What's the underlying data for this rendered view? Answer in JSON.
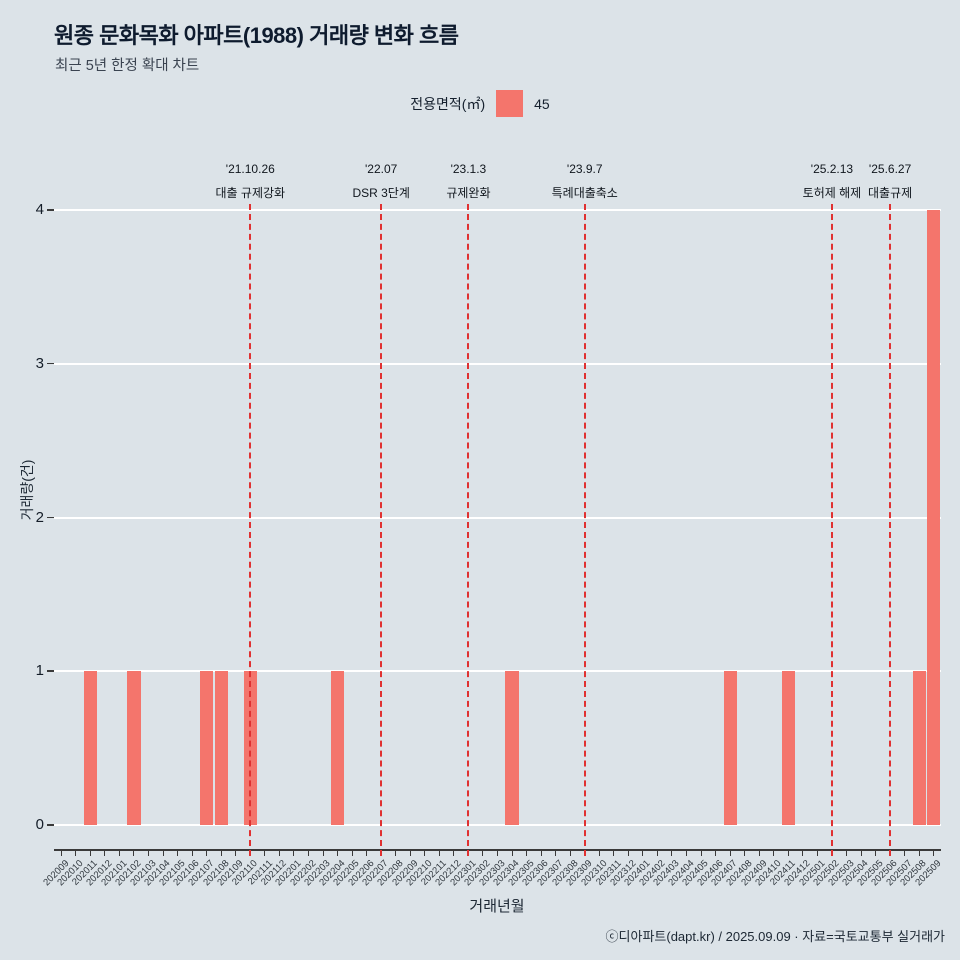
{
  "header": {
    "title": "원종 문화목화 아파트(1988) 거래량 변화 흐름",
    "subtitle": "최근 5년 한정 확대 차트"
  },
  "legend": {
    "title": "전용면적(㎡)",
    "value": "45",
    "swatch_color": "#F4756C"
  },
  "chart_data": {
    "type": "bar",
    "title": "원종 문화목화 아파트(1988) 거래량 변화 흐름",
    "subtitle": "최근 5년 한정 확대 차트",
    "xlabel": "거래년월",
    "ylabel": "거래량(건)",
    "ylim": [
      0,
      4
    ],
    "yticks": [
      0,
      1,
      2,
      3,
      4
    ],
    "grid": true,
    "legend_position": "top",
    "legend_title": "전용면적(㎡)",
    "bar_color": "#F4756C",
    "annotation_color": "#E03131",
    "background_color": "#DCE3E8",
    "categories": [
      "202009",
      "202010",
      "202011",
      "202012",
      "202101",
      "202102",
      "202103",
      "202104",
      "202105",
      "202106",
      "202107",
      "202108",
      "202109",
      "202110",
      "202111",
      "202112",
      "202201",
      "202202",
      "202203",
      "202204",
      "202205",
      "202206",
      "202207",
      "202208",
      "202209",
      "202210",
      "202211",
      "202212",
      "202301",
      "202302",
      "202303",
      "202304",
      "202305",
      "202306",
      "202307",
      "202308",
      "202309",
      "202310",
      "202311",
      "202312",
      "202401",
      "202402",
      "202403",
      "202404",
      "202405",
      "202406",
      "202407",
      "202408",
      "202409",
      "202410",
      "202411",
      "202412",
      "202501",
      "202502",
      "202503",
      "202504",
      "202505",
      "202506",
      "202507",
      "202508",
      "202509"
    ],
    "series": [
      {
        "name": "45",
        "color": "#F4756C",
        "values": [
          0,
          0,
          1,
          0,
          0,
          1,
          0,
          0,
          0,
          0,
          1,
          1,
          0,
          1,
          0,
          0,
          0,
          0,
          0,
          1,
          0,
          0,
          0,
          0,
          0,
          0,
          0,
          0,
          0,
          0,
          0,
          1,
          0,
          0,
          0,
          0,
          0,
          0,
          0,
          0,
          0,
          0,
          0,
          0,
          0,
          0,
          1,
          0,
          0,
          0,
          1,
          0,
          0,
          0,
          0,
          0,
          0,
          0,
          0,
          1,
          4
        ]
      }
    ],
    "annotations": [
      {
        "month": "202110",
        "date": "'21.10.26",
        "label": "대출 규제강화"
      },
      {
        "month": "202207",
        "date": "'22.07",
        "label": "DSR 3단계"
      },
      {
        "month": "202301",
        "date": "'23.1.3",
        "label": "규제완화"
      },
      {
        "month": "202309",
        "date": "'23.9.7",
        "label": "특례대출축소"
      },
      {
        "month": "202502",
        "date": "'25.2.13",
        "label": "토허제 해제"
      },
      {
        "month": "202506",
        "date": "'25.6.27",
        "label": "대출규제"
      }
    ]
  },
  "footer": {
    "credit": "ⓒ디아파트(dapt.kr) / 2025.09.09 · 자료=국토교통부 실거래가"
  }
}
